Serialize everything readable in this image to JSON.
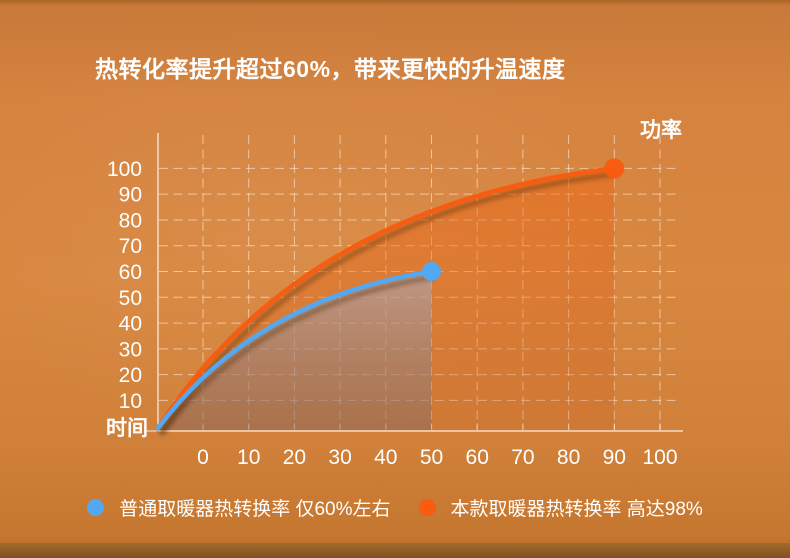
{
  "title": "热转化率提升超过60%，带来更快的升温速度",
  "chart_data": {
    "type": "line",
    "title": "热转化率提升超过60%，带来更快的升温速度",
    "x_axis_title": "时间",
    "y_axis_title": "功率",
    "x_ticks": [
      0,
      10,
      20,
      30,
      40,
      50,
      60,
      70,
      80,
      90,
      100
    ],
    "y_ticks": [
      10,
      20,
      30,
      40,
      50,
      60,
      70,
      80,
      90,
      100
    ],
    "xlim": [
      0,
      100
    ],
    "ylim": [
      0,
      110
    ],
    "grid": "dashed-white",
    "legend_position": "bottom-center",
    "series": [
      {
        "name": "普通取暖器热转换率",
        "legend_label": "普通取暖器热转换率 仅60%左右",
        "color": "#54a7f1",
        "area_fill": "gray-translucent",
        "points": [
          [
            0,
            0
          ],
          [
            50,
            60
          ]
        ]
      },
      {
        "name": "本款取暖器热转换率",
        "legend_label": "本款取暖器热转换率 高达98%",
        "color": "#f85c10",
        "area_fill": "orange-translucent",
        "points": [
          [
            0,
            0
          ],
          [
            90,
            100
          ]
        ]
      }
    ]
  },
  "legend": {
    "items": [
      {
        "label": "普通取暖器热转换率 仅60%左右",
        "color": "#54a7f1"
      },
      {
        "label": "本款取暖器热转换率 高达98%",
        "color": "#f85c10"
      }
    ]
  },
  "colors": {
    "background": "#d5823e",
    "text": "#ffffff",
    "grid": "rgba(255,255,255,0.52)",
    "blue": "#54a7f1",
    "orange": "#f85c10"
  }
}
